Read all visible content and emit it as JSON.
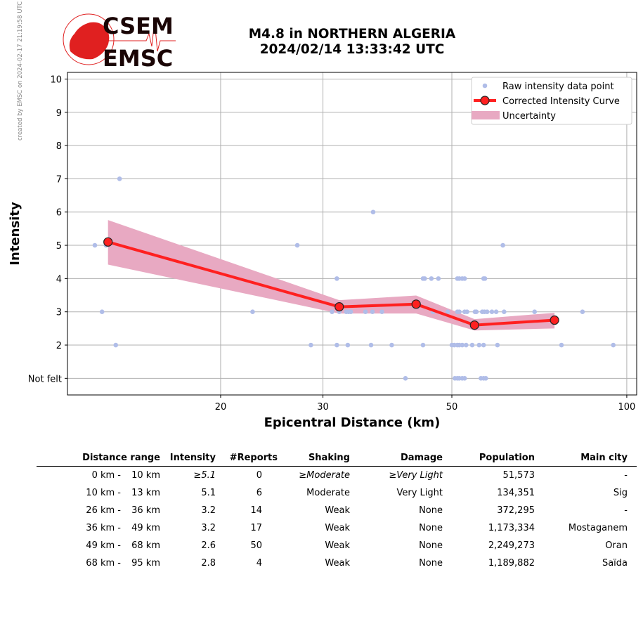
{
  "header": {
    "title_line1": "M4.8 in NORTHERN ALGERIA",
    "title_line2": "2024/02/14 13:33:42 UTC",
    "credit": "created by EMSC on 2024-02-17 21:19:58 UTC",
    "logo_text": [
      "CSEM",
      "EMSC"
    ]
  },
  "colors": {
    "raw": "#b0bde8",
    "curve": "#ff2020",
    "band": "#e8a9c2",
    "logo_red": "#e02020"
  },
  "chart_data": {
    "type": "scatter",
    "xscale": "log",
    "xlabel": "Epicentral Distance (km)",
    "ylabel": "Intensity",
    "xlim": [
      10.9,
      104
    ],
    "ylim": [
      0.5,
      10.2
    ],
    "xticks": [
      {
        "v": 20,
        "label": "20"
      },
      {
        "v": 30,
        "label": "30"
      },
      {
        "v": 50,
        "label": "50"
      },
      {
        "v": 100,
        "label": "100"
      }
    ],
    "yticks": [
      {
        "v": 1,
        "label": "Not felt"
      },
      {
        "v": 2,
        "label": "2"
      },
      {
        "v": 3,
        "label": "3"
      },
      {
        "v": 4,
        "label": "4"
      },
      {
        "v": 5,
        "label": "5"
      },
      {
        "v": 6,
        "label": "6"
      },
      {
        "v": 7,
        "label": "7"
      },
      {
        "v": 8,
        "label": "8"
      },
      {
        "v": 9,
        "label": "9"
      },
      {
        "v": 10,
        "label": "10"
      }
    ],
    "grid": true,
    "legend": {
      "placement": "top-right",
      "entries": [
        "Raw intensity data point",
        "Corrected Intensity Curve",
        "Uncertainty"
      ]
    },
    "raw_points": [
      [
        12.15,
        5
      ],
      [
        12.7,
        5
      ],
      [
        12.5,
        3
      ],
      [
        13.2,
        2
      ],
      [
        13.4,
        7
      ],
      [
        22.7,
        3
      ],
      [
        27.1,
        5
      ],
      [
        28.6,
        2
      ],
      [
        31.1,
        3
      ],
      [
        31.7,
        4
      ],
      [
        31.7,
        2
      ],
      [
        32.0,
        3
      ],
      [
        32.9,
        3
      ],
      [
        33.1,
        2
      ],
      [
        33.2,
        3
      ],
      [
        33.5,
        3
      ],
      [
        35.5,
        3
      ],
      [
        36.3,
        2
      ],
      [
        36.5,
        3
      ],
      [
        36.6,
        6
      ],
      [
        37.9,
        3
      ],
      [
        39.4,
        2
      ],
      [
        41.6,
        1
      ],
      [
        44.6,
        2
      ],
      [
        44.6,
        4
      ],
      [
        44.9,
        4
      ],
      [
        46.1,
        4
      ],
      [
        46.4,
        3
      ],
      [
        47.4,
        4
      ],
      [
        49.2,
        3
      ],
      [
        50.0,
        2
      ],
      [
        50.5,
        2
      ],
      [
        50.6,
        1
      ],
      [
        51.1,
        2
      ],
      [
        51.1,
        3
      ],
      [
        51.1,
        4
      ],
      [
        51.1,
        1
      ],
      [
        51.5,
        2
      ],
      [
        51.5,
        3
      ],
      [
        51.5,
        4
      ],
      [
        51.5,
        1
      ],
      [
        52.1,
        2
      ],
      [
        52.1,
        4
      ],
      [
        52.1,
        1
      ],
      [
        52.6,
        3
      ],
      [
        52.6,
        4
      ],
      [
        52.6,
        1
      ],
      [
        52.9,
        2
      ],
      [
        53.1,
        3
      ],
      [
        54.2,
        2
      ],
      [
        54.8,
        3
      ],
      [
        55.1,
        3
      ],
      [
        55.7,
        2
      ],
      [
        56.1,
        1
      ],
      [
        56.4,
        3
      ],
      [
        56.7,
        2
      ],
      [
        56.7,
        4
      ],
      [
        56.7,
        1
      ],
      [
        56.9,
        3
      ],
      [
        57.0,
        4
      ],
      [
        57.2,
        1
      ],
      [
        57.5,
        3
      ],
      [
        58.6,
        3
      ],
      [
        59.6,
        3
      ],
      [
        59.9,
        2
      ],
      [
        61.2,
        5
      ],
      [
        61.5,
        3
      ],
      [
        69.4,
        3
      ],
      [
        77.2,
        2
      ],
      [
        83.9,
        3
      ],
      [
        94.8,
        2
      ]
    ],
    "curve": [
      [
        12.8,
        5.1
      ],
      [
        32.0,
        3.15
      ],
      [
        43.4,
        3.23
      ],
      [
        54.7,
        2.6
      ],
      [
        75.1,
        2.75
      ]
    ],
    "band_upper": [
      5.76,
      3.35,
      3.49,
      2.78,
      2.97
    ],
    "band_lower": [
      4.42,
      2.95,
      2.95,
      2.44,
      2.5
    ]
  },
  "table": {
    "headers": [
      "Distance range",
      "Intensity",
      "#Reports",
      "Shaking",
      "Damage",
      "Population",
      "Main city"
    ],
    "rows": [
      {
        "from": "0 km -",
        "to": "10 km",
        "intensity": "≥5.1",
        "reports": "0",
        "shaking": "≥Moderate",
        "damage": "≥Very Light",
        "population": "51,573",
        "city": "-",
        "italic": true
      },
      {
        "from": "10 km -",
        "to": "13 km",
        "intensity": "5.1",
        "reports": "6",
        "shaking": "Moderate",
        "damage": "Very Light",
        "population": "134,351",
        "city": "Sig"
      },
      {
        "from": "26 km -",
        "to": "36 km",
        "intensity": "3.2",
        "reports": "14",
        "shaking": "Weak",
        "damage": "None",
        "population": "372,295",
        "city": "-"
      },
      {
        "from": "36 km -",
        "to": "49 km",
        "intensity": "3.2",
        "reports": "17",
        "shaking": "Weak",
        "damage": "None",
        "population": "1,173,334",
        "city": "Mostaganem"
      },
      {
        "from": "49 km -",
        "to": "68 km",
        "intensity": "2.6",
        "reports": "50",
        "shaking": "Weak",
        "damage": "None",
        "population": "2,249,273",
        "city": "Oran"
      },
      {
        "from": "68 km -",
        "to": "95 km",
        "intensity": "2.8",
        "reports": "4",
        "shaking": "Weak",
        "damage": "None",
        "population": "1,189,882",
        "city": "Saïda"
      }
    ]
  }
}
